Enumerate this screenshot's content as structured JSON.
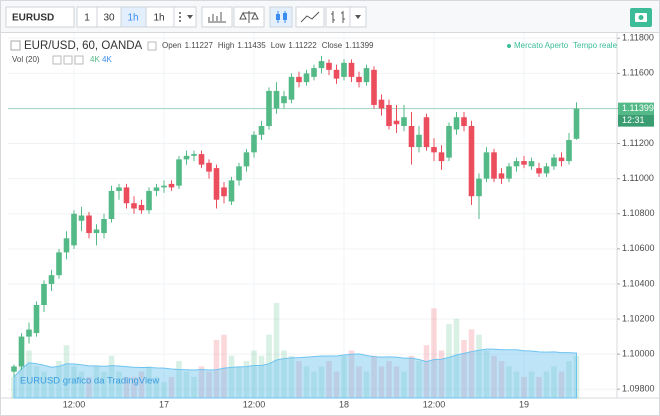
{
  "toolbar": {
    "symbol": "EURUSD",
    "intervals": [
      "1",
      "30",
      "1h",
      "1h"
    ]
  },
  "chart_data": {
    "type": "candlestick",
    "title": "EUR/USD, 60, OANDA",
    "ohlc_names": [
      "Open",
      "High",
      "Low",
      "Close"
    ],
    "status": "Mercato Aperto",
    "feed": "Tempo reale",
    "volume_indicator": {
      "title": "Vol (20)",
      "values": [
        "4K",
        "4K"
      ]
    },
    "countdown": "12:31",
    "watermark": "EURUSD grafico da TradingView",
    "up_color": "#53b987",
    "down_color": "#eb4d5c",
    "grid": true,
    "categories": [
      null,
      null,
      null,
      null,
      null,
      null,
      null,
      null,
      "12:00",
      null,
      null,
      null,
      null,
      null,
      null,
      null,
      null,
      null,
      null,
      null,
      "17",
      null,
      null,
      null,
      null,
      null,
      null,
      null,
      null,
      null,
      null,
      null,
      "12:00",
      null,
      null,
      null,
      null,
      null,
      null,
      null,
      null,
      null,
      null,
      null,
      "18",
      null,
      null,
      null,
      null,
      null,
      null,
      null,
      null,
      null,
      null,
      null,
      "12:00",
      null,
      null,
      null,
      null,
      null,
      null,
      null,
      null,
      null,
      null,
      null,
      "19",
      null,
      null,
      null,
      null,
      null,
      null,
      null
    ],
    "open": [
      1.099,
      1.0993,
      1.101,
      1.1012,
      1.1028,
      1.104,
      1.1045,
      1.1058,
      1.1062,
      1.1076,
      1.1079,
      1.1069,
      1.1069,
      1.1077,
      1.1093,
      1.1095,
      1.1086,
      1.1085,
      1.1082,
      1.1093,
      1.1095,
      1.1097,
      1.1096,
      1.1111,
      1.1113,
      1.1114,
      1.1109,
      1.1106,
      1.1095,
      1.1087,
      1.1099,
      1.1107,
      1.1115,
      1.1125,
      1.113,
      1.114,
      1.1143,
      1.1145,
      1.1158,
      1.1155,
      1.1158,
      1.1163,
      1.1166,
      1.1162,
      1.1158,
      1.1166,
      1.1158,
      1.1155,
      1.1162,
      1.1145,
      1.1142,
      1.1133,
      1.113,
      1.113,
      1.1118,
      1.1135,
      1.1118,
      1.1115,
      1.1112,
      1.1128,
      1.1135,
      1.113,
      1.109,
      1.11,
      1.1115,
      1.1103,
      1.11,
      1.1107,
      1.111,
      1.1107,
      1.1106,
      1.1103,
      1.1107,
      1.1112,
      1.111,
      1.11227
    ],
    "high": [
      1.0994,
      1.1012,
      1.1018,
      1.103,
      1.1042,
      1.1048,
      1.106,
      1.107,
      1.1082,
      1.1084,
      1.1081,
      1.1074,
      1.108,
      1.1096,
      1.1097,
      1.1097,
      1.109,
      1.1088,
      1.1095,
      1.1097,
      1.1099,
      1.1099,
      1.1113,
      1.1116,
      1.1116,
      1.1116,
      1.1111,
      1.1108,
      1.1098,
      1.1101,
      1.1109,
      1.1117,
      1.1127,
      1.1133,
      1.1152,
      1.1155,
      1.115,
      1.116,
      1.1161,
      1.1162,
      1.1165,
      1.117,
      1.1168,
      1.1165,
      1.1168,
      1.1168,
      1.1161,
      1.1165,
      1.1164,
      1.1148,
      1.1145,
      1.1142,
      1.1142,
      1.1138,
      1.113,
      1.1137,
      1.1123,
      1.1119,
      1.1132,
      1.1138,
      1.1138,
      1.1133,
      1.1103,
      1.1118,
      1.1117,
      1.1106,
      1.1109,
      1.1112,
      1.1113,
      1.1112,
      1.1109,
      1.1109,
      1.1114,
      1.1115,
      1.1126,
      1.11435
    ],
    "low": [
      1.0987,
      1.0991,
      1.1006,
      1.101,
      1.1024,
      1.1036,
      1.1043,
      1.1054,
      1.106,
      1.107,
      1.1066,
      1.1062,
      1.1066,
      1.1075,
      1.1088,
      1.1083,
      1.108,
      1.108,
      1.108,
      1.109,
      1.1092,
      1.1093,
      1.1094,
      1.1108,
      1.111,
      1.1106,
      1.11,
      1.1083,
      1.1086,
      1.1085,
      1.1096,
      1.1104,
      1.1112,
      1.1122,
      1.1128,
      1.1137,
      1.114,
      1.1143,
      1.1152,
      1.1153,
      1.1156,
      1.116,
      1.1159,
      1.1154,
      1.1156,
      1.1155,
      1.1152,
      1.1153,
      1.114,
      1.1136,
      1.1128,
      1.1126,
      1.1127,
      1.1108,
      1.1115,
      1.1116,
      1.111,
      1.1105,
      1.111,
      1.1125,
      1.1127,
      1.1085,
      1.1077,
      1.1098,
      1.1098,
      1.1097,
      1.1098,
      1.1104,
      1.1106,
      1.1105,
      1.1101,
      1.1101,
      1.1105,
      1.1107,
      1.1108,
      1.11222
    ],
    "close": [
      1.0993,
      1.101,
      1.1014,
      1.1028,
      1.104,
      1.1045,
      1.1058,
      1.1066,
      1.108,
      1.1079,
      1.1069,
      1.1071,
      1.1077,
      1.1093,
      1.1095,
      1.1086,
      1.1083,
      1.1082,
      1.1093,
      1.1095,
      1.1096,
      1.1095,
      1.1111,
      1.1113,
      1.1114,
      1.1108,
      1.1104,
      1.1088,
      1.109,
      1.1099,
      1.1107,
      1.1115,
      1.1125,
      1.113,
      1.115,
      1.115,
      1.1147,
      1.1158,
      1.1155,
      1.116,
      1.1163,
      1.1167,
      1.1162,
      1.1157,
      1.1166,
      1.1158,
      1.1155,
      1.1163,
      1.1142,
      1.114,
      1.113,
      1.1131,
      1.1135,
      1.1118,
      1.1125,
      1.1118,
      1.1115,
      1.111,
      1.113,
      1.1135,
      1.113,
      1.109,
      1.11,
      1.1115,
      1.11,
      1.11,
      1.1107,
      1.111,
      1.1108,
      1.111,
      1.1103,
      1.1107,
      1.1112,
      1.111,
      1.1122,
      1.11399
    ],
    "volume": [
      20,
      35,
      45,
      30,
      25,
      20,
      35,
      50,
      30,
      25,
      20,
      30,
      25,
      40,
      25,
      20,
      20,
      25,
      30,
      20,
      15,
      20,
      35,
      25,
      20,
      30,
      25,
      55,
      60,
      40,
      30,
      35,
      45,
      40,
      60,
      90,
      45,
      40,
      35,
      30,
      25,
      30,
      35,
      25,
      40,
      45,
      30,
      25,
      40,
      30,
      35,
      30,
      25,
      40,
      35,
      50,
      85,
      45,
      70,
      75,
      55,
      65,
      60,
      45,
      40,
      35,
      30,
      25,
      20,
      25,
      20,
      25,
      30,
      25,
      35,
      40
    ],
    "ylim": [
      1.0975,
      1.1183
    ],
    "yticks": [
      {
        "value": 1.118,
        "label": "1.11800"
      },
      {
        "value": 1.116,
        "label": "1.11600"
      },
      {
        "value": 1.114,
        "label": "1.11400"
      },
      {
        "value": 1.112,
        "label": "1.11200"
      },
      {
        "value": 1.11,
        "label": "1.11000"
      },
      {
        "value": 1.108,
        "label": "1.10800"
      },
      {
        "value": 1.106,
        "label": "1.10600"
      },
      {
        "value": 1.104,
        "label": "1.10400"
      },
      {
        "value": 1.102,
        "label": "1.10200"
      },
      {
        "value": 1.1,
        "label": "1.10000"
      },
      {
        "value": 1.098,
        "label": "1.09800"
      }
    ]
  }
}
